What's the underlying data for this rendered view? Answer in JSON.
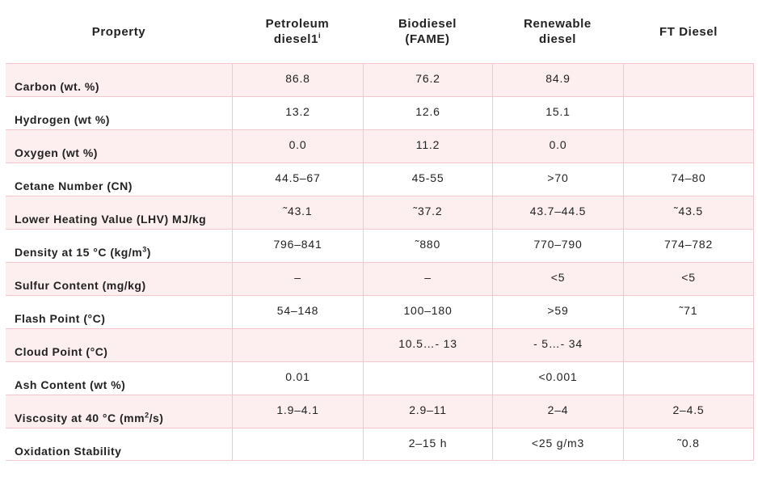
{
  "header": {
    "property": "Property",
    "col1_line1": "Petroleum",
    "col1_line2": "diesel1",
    "col1_sup": "i",
    "col2_line1": "Biodiesel",
    "col2_line2": "(FAME)",
    "col3_line1": "Renewable",
    "col3_line2": "diesel",
    "col4": "FT Diesel"
  },
  "rows": [
    {
      "label": "Carbon (wt. %)",
      "petroleum": "86.8",
      "biodiesel": "76.2",
      "renewable": "84.9",
      "ft": ""
    },
    {
      "label": "Hydrogen (wt %)",
      "petroleum": "13.2",
      "biodiesel": "12.6",
      "renewable": "15.1",
      "ft": ""
    },
    {
      "label": "Oxygen (wt %)",
      "petroleum": "0.0",
      "biodiesel": "11.2",
      "renewable": "0.0",
      "ft": ""
    },
    {
      "label": "Cetane Number (CN)",
      "petroleum": "44.5–67",
      "biodiesel": "45-55",
      "renewable": ">70",
      "ft": "74–80"
    },
    {
      "label": "Lower Heating Value (LHV) MJ/kg",
      "petroleum": "˜43.1",
      "biodiesel": "˜37.2",
      "renewable": "43.7–44.5",
      "ft": "˜43.5"
    },
    {
      "label": "Density at 15 °C (kg/m",
      "label_sup": "3",
      "label_end": ")",
      "petroleum": "796–841",
      "biodiesel": "˜880",
      "renewable": "770–790",
      "ft": "774–782"
    },
    {
      "label": "Sulfur Content (mg/kg)",
      "petroleum": "–",
      "biodiesel": "–",
      "renewable": "<5",
      "ft": "<5"
    },
    {
      "label": "Flash Point (°C)",
      "petroleum": "54–148",
      "biodiesel": "100–180",
      "renewable": ">59",
      "ft": "˜71"
    },
    {
      "label": "Cloud Point (°C)",
      "petroleum": "",
      "biodiesel": "10.5…- 13",
      "renewable": "- 5…- 34",
      "ft": ""
    },
    {
      "label": "Ash Content (wt %)",
      "petroleum": "0.01",
      "biodiesel": "",
      "renewable": "<0.001",
      "ft": ""
    },
    {
      "label": "Viscosity at 40 °C (mm",
      "label_sup": "2",
      "label_end": "/s)",
      "petroleum": "1.9–4.1",
      "biodiesel": "2.9–11",
      "renewable": "2–4",
      "ft": "2–4.5"
    },
    {
      "label": "Oxidation Stability",
      "petroleum": "",
      "biodiesel": "2–15 h",
      "renewable": "<25 g/m3",
      "ft": "˜0.8"
    }
  ]
}
